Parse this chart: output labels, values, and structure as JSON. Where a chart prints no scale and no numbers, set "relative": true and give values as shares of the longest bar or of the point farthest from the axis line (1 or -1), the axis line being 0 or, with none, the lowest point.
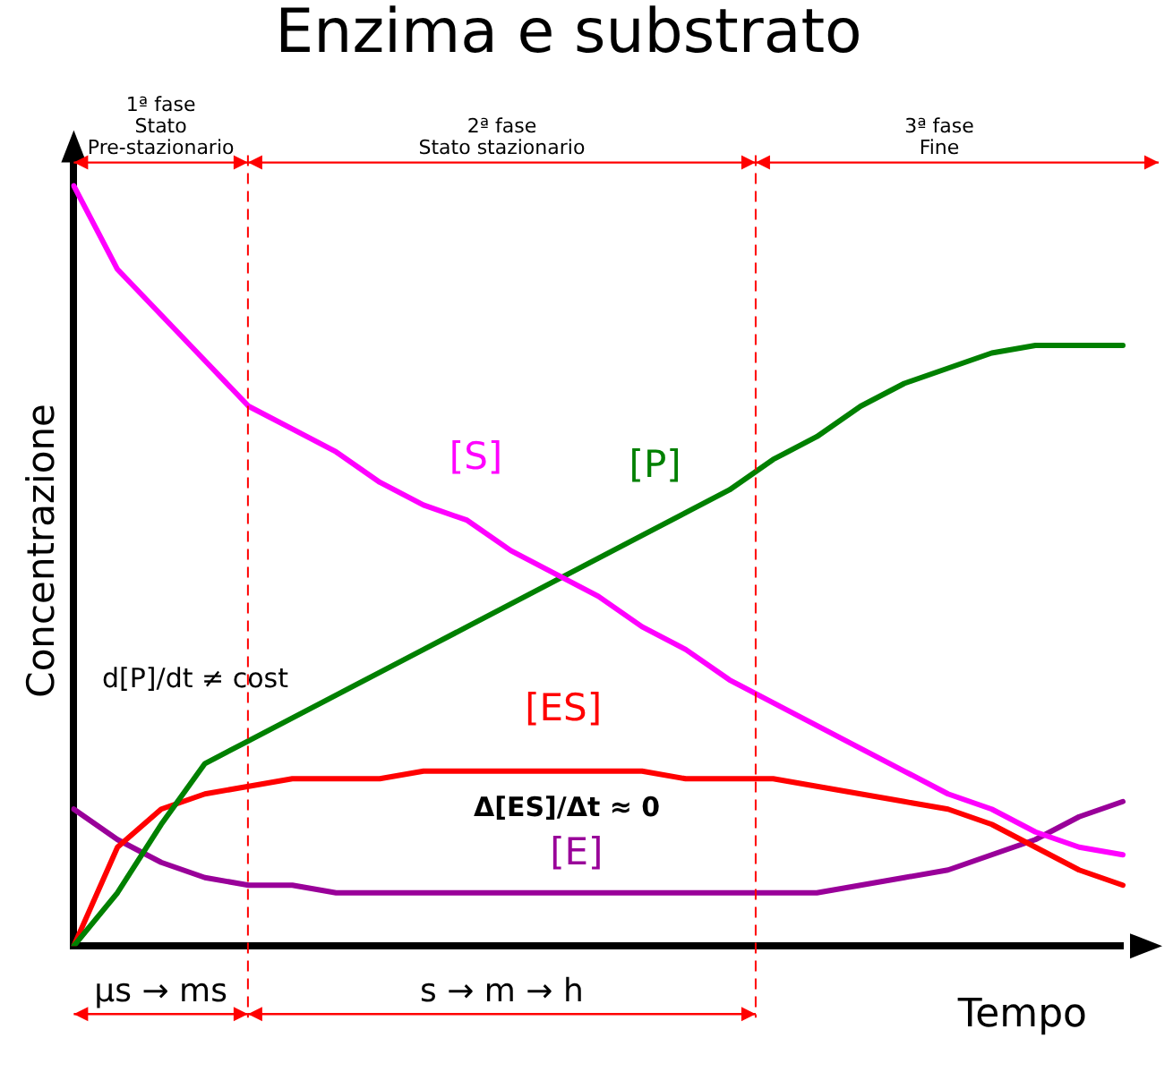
{
  "chart_data": {
    "type": "line",
    "title": "Enzima e substrato",
    "xlabel": "Tempo",
    "ylabel": "Concentrazione",
    "relative": true,
    "categories": [
      null,
      null,
      null,
      null,
      null,
      null,
      null,
      null,
      null,
      null,
      null,
      null,
      null,
      null,
      null,
      null,
      null,
      null,
      null,
      null,
      null,
      null,
      null,
      null,
      null
    ],
    "legend": false,
    "marker": "none",
    "line_style": "solid",
    "series": [
      {
        "name": "[S]",
        "color": "#ff00ff",
        "values": [
          1.0,
          0.89,
          0.83,
          0.77,
          0.71,
          0.68,
          0.65,
          0.61,
          0.58,
          0.56,
          0.52,
          0.49,
          0.46,
          0.42,
          0.39,
          0.35,
          0.32,
          0.29,
          0.26,
          0.23,
          0.2,
          0.18,
          0.15,
          0.13,
          0.12
        ]
      },
      {
        "name": "[P]",
        "color": "#008000",
        "values": [
          0,
          0.07,
          0.16,
          0.24,
          0.27,
          0.3,
          0.33,
          0.36,
          0.39,
          0.42,
          0.45,
          0.48,
          0.51,
          0.54,
          0.57,
          0.6,
          0.64,
          0.67,
          0.71,
          0.74,
          0.76,
          0.78,
          0.79,
          0.79,
          0.79
        ]
      },
      {
        "name": "[ES]",
        "color": "#ff0000",
        "values": [
          0,
          0.13,
          0.18,
          0.2,
          0.21,
          0.22,
          0.22,
          0.22,
          0.23,
          0.23,
          0.23,
          0.23,
          0.23,
          0.23,
          0.22,
          0.22,
          0.22,
          0.21,
          0.2,
          0.19,
          0.18,
          0.16,
          0.13,
          0.1,
          0.08
        ]
      },
      {
        "name": "[E]",
        "color": "#990099",
        "values": [
          0.18,
          0.14,
          0.11,
          0.09,
          0.08,
          0.08,
          0.07,
          0.07,
          0.07,
          0.07,
          0.07,
          0.07,
          0.07,
          0.07,
          0.07,
          0.07,
          0.07,
          0.07,
          0.08,
          0.09,
          0.1,
          0.12,
          0.14,
          0.17,
          0.19
        ]
      }
    ],
    "annotations": [
      "1ª fase\nStato\nPre-stazionario",
      "2ª fase\nStato stazionario",
      "3ª fase\nFine",
      "d[P]/dt ≠ cost",
      "Δ[ES]/Δt ≈ 0",
      "μs → ms",
      "s → m → h"
    ]
  }
}
